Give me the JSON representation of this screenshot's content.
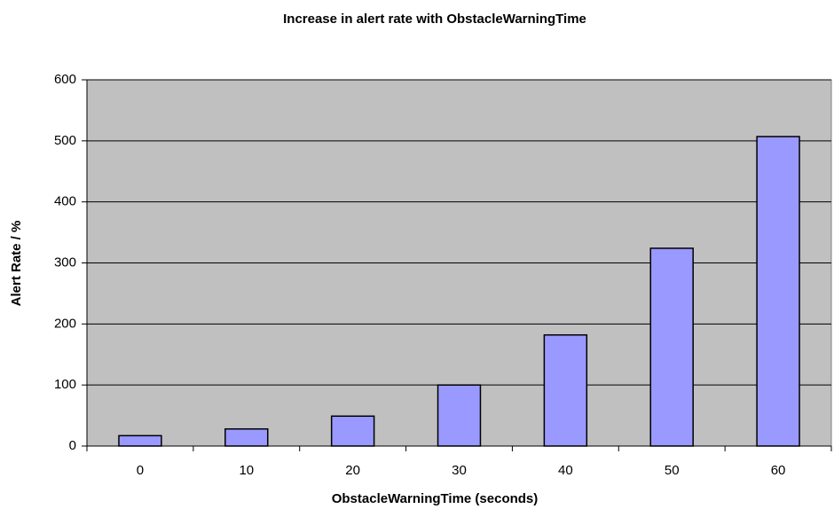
{
  "chart_data": {
    "type": "bar",
    "title": "Increase in alert rate with ObstacleWarningTime",
    "x_label": "ObstacleWarningTime (seconds)",
    "y_label": "Alert Rate / %",
    "categories": [
      "0",
      "10",
      "20",
      "30",
      "40",
      "50",
      "60"
    ],
    "values": [
      17,
      28,
      49,
      100,
      182,
      324,
      507
    ],
    "color": "#9999ff",
    "background": "#c0c0c0",
    "ylim": [
      0,
      600
    ],
    "yticks": [
      0,
      100,
      200,
      300,
      400,
      500,
      600
    ],
    "grid": true
  }
}
